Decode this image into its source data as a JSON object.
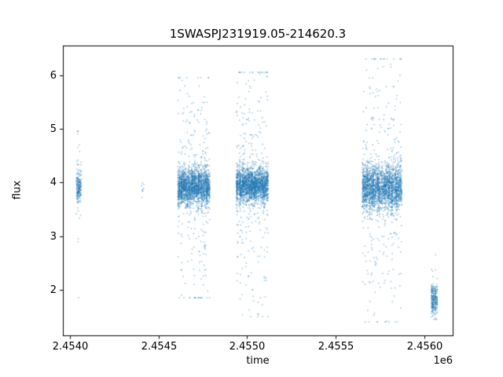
{
  "chart_data": {
    "type": "scatter",
    "title": "1SWASPJ231919.05-214620.3",
    "xlabel": "time",
    "ylabel": "flux",
    "x_offset_label": "1e6",
    "xlim": [
      2453960,
      2456160
    ],
    "ylim": [
      1.15,
      6.55
    ],
    "xticks": [
      {
        "v": 2454000,
        "label": "2.4540"
      },
      {
        "v": 2454500,
        "label": "2.4545"
      },
      {
        "v": 2455000,
        "label": "2.4550"
      },
      {
        "v": 2455500,
        "label": "2.4555"
      },
      {
        "v": 2456000,
        "label": "2.4560"
      }
    ],
    "yticks": [
      {
        "v": 2,
        "label": "2"
      },
      {
        "v": 3,
        "label": "3"
      },
      {
        "v": 4,
        "label": "4"
      },
      {
        "v": 5,
        "label": "5"
      },
      {
        "v": 6,
        "label": "6"
      }
    ],
    "marker_color": "#1f77b4",
    "marker_alpha": 0.5,
    "legend": false,
    "grid": false,
    "clusters": [
      {
        "x_min": 2454035,
        "x_max": 2454062,
        "nights": 5,
        "n_core": 200,
        "y_mean": 3.9,
        "y_sigma": 0.14,
        "n_tail": 28,
        "tail_sigma": 0.45,
        "y_clip": [
          1.75,
          4.95
        ]
      },
      {
        "x_min": 2454405,
        "x_max": 2454418,
        "nights": 2,
        "n_core": 9,
        "y_mean": 3.9,
        "y_sigma": 0.09,
        "n_tail": 0,
        "tail_sigma": 0.3,
        "y_clip": [
          3.6,
          4.1
        ]
      },
      {
        "x_min": 2454608,
        "x_max": 2454788,
        "nights": 45,
        "n_core": 2100,
        "y_mean": 3.92,
        "y_sigma": 0.16,
        "n_tail": 270,
        "tail_sigma": 0.75,
        "y_clip": [
          1.85,
          5.95
        ]
      },
      {
        "x_min": 2454938,
        "x_max": 2455118,
        "nights": 45,
        "n_core": 2100,
        "y_mean": 3.95,
        "y_sigma": 0.16,
        "n_tail": 270,
        "tail_sigma": 0.8,
        "y_clip": [
          1.5,
          6.05
        ]
      },
      {
        "x_min": 2455648,
        "x_max": 2455872,
        "nights": 55,
        "n_core": 2300,
        "y_mean": 3.9,
        "y_sigma": 0.2,
        "n_tail": 330,
        "tail_sigma": 0.85,
        "y_clip": [
          1.4,
          6.3
        ]
      },
      {
        "x_min": 2456040,
        "x_max": 2456072,
        "nights": 6,
        "n_core": 270,
        "y_mean": 1.85,
        "y_sigma": 0.14,
        "n_tail": 26,
        "tail_sigma": 0.35,
        "y_clip": [
          1.45,
          2.65
        ]
      }
    ],
    "outliers": [
      [
        2454049,
        1.85
      ],
      [
        2454047,
        2.95
      ],
      [
        2454044,
        4.9
      ],
      [
        2454052,
        4.7
      ],
      [
        2455060,
        1.55
      ],
      [
        2455790,
        1.42
      ]
    ]
  }
}
